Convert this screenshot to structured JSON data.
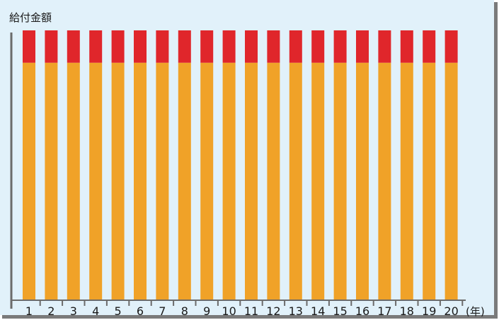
{
  "chart_data": {
    "type": "bar",
    "stacked": true,
    "ylabel": "給付金額",
    "xlabel": "(年)",
    "categories": [
      "1",
      "2",
      "3",
      "4",
      "5",
      "6",
      "7",
      "8",
      "9",
      "10",
      "11",
      "12",
      "13",
      "14",
      "15",
      "16",
      "17",
      "18",
      "19",
      "20"
    ],
    "series": [
      {
        "color": "#F0A228",
        "values": [
          88,
          88,
          88,
          88,
          88,
          88,
          88,
          88,
          88,
          88,
          88,
          88,
          88,
          88,
          88,
          88,
          88,
          88,
          88,
          88
        ]
      },
      {
        "color": "#E0262B",
        "values": [
          12,
          12,
          12,
          12,
          12,
          12,
          12,
          12,
          12,
          12,
          12,
          12,
          12,
          12,
          12,
          12,
          12,
          12,
          12,
          12
        ]
      }
    ],
    "ylim": [
      0,
      100
    ],
    "grid": false
  },
  "colors": {
    "background": "#E1F1FA",
    "axis": "#6B6B6B",
    "frame_shadow": "#7A7A7A"
  }
}
